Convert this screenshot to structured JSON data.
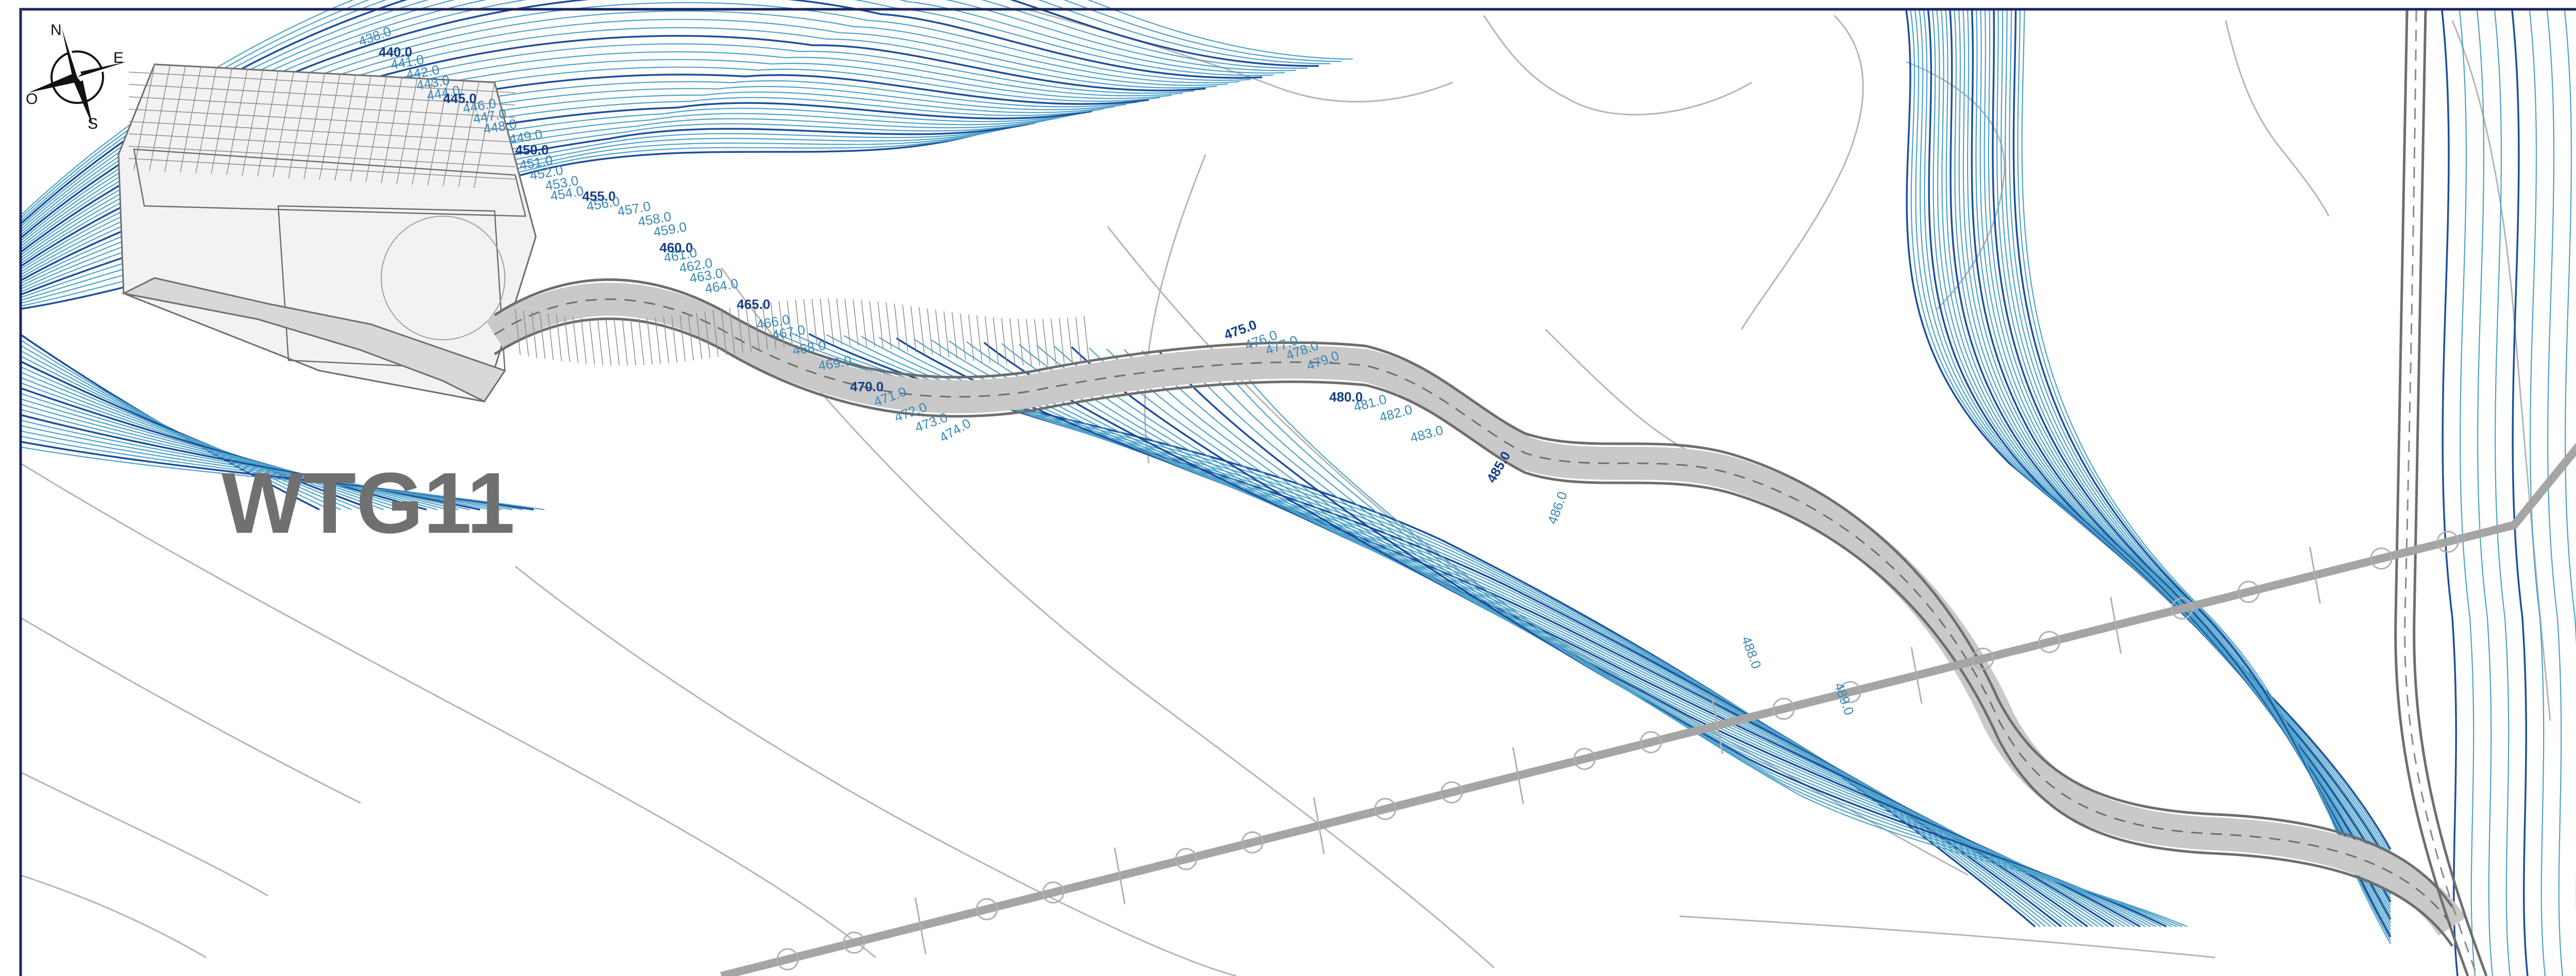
{
  "map": {
    "site_label": "WTG11",
    "compass": {
      "north": "N",
      "east": "E",
      "south": "S",
      "west": "O"
    },
    "colors": {
      "background": "#ffffff",
      "frame": "#1a2660",
      "contour_minor": "#4fa3c9",
      "contour_major": "#1d4f9e",
      "label_minor": "#3a88b5",
      "label_major": "#163f88",
      "road": "#6e6e6e",
      "road_hatch": "#8a8a8a",
      "platform_fill": "#d8d8d8",
      "power_line": "#a5a5a5",
      "terrain_lines": "#b5b5b5",
      "site_label": "#707070"
    },
    "contour_labels": [
      {
        "text": "438.0",
        "major": false
      },
      {
        "text": "440.0",
        "major": true
      },
      {
        "text": "441.0",
        "major": false
      },
      {
        "text": "442.0",
        "major": false
      },
      {
        "text": "443.0",
        "major": false
      },
      {
        "text": "444.0",
        "major": false
      },
      {
        "text": "445.0",
        "major": true
      },
      {
        "text": "446.0",
        "major": false
      },
      {
        "text": "447.0",
        "major": false
      },
      {
        "text": "448.0",
        "major": false
      },
      {
        "text": "449.0",
        "major": false
      },
      {
        "text": "450.0",
        "major": true
      },
      {
        "text": "451.0",
        "major": false
      },
      {
        "text": "452.0",
        "major": false
      },
      {
        "text": "453.0",
        "major": false
      },
      {
        "text": "454.0",
        "major": false
      },
      {
        "text": "455.0",
        "major": true
      },
      {
        "text": "456.0",
        "major": false
      },
      {
        "text": "457.0",
        "major": false
      },
      {
        "text": "458.0",
        "major": false
      },
      {
        "text": "459.0",
        "major": false
      },
      {
        "text": "460.0",
        "major": true
      },
      {
        "text": "461.0",
        "major": false
      },
      {
        "text": "462.0",
        "major": false
      },
      {
        "text": "463.0",
        "major": false
      },
      {
        "text": "464.0",
        "major": false
      },
      {
        "text": "465.0",
        "major": true
      },
      {
        "text": "466.0",
        "major": false
      },
      {
        "text": "467.0",
        "major": false
      },
      {
        "text": "468.0",
        "major": false
      },
      {
        "text": "469.0",
        "major": false
      },
      {
        "text": "470.0",
        "major": true
      },
      {
        "text": "471.0",
        "major": false
      },
      {
        "text": "472.0",
        "major": false
      },
      {
        "text": "473.0",
        "major": false
      },
      {
        "text": "474.0",
        "major": false
      },
      {
        "text": "475.0",
        "major": true
      },
      {
        "text": "476.0",
        "major": false
      },
      {
        "text": "477.0",
        "major": false
      },
      {
        "text": "478.0",
        "major": false
      },
      {
        "text": "479.0",
        "major": false
      },
      {
        "text": "480.0",
        "major": true
      },
      {
        "text": "481.0",
        "major": false
      },
      {
        "text": "482.0",
        "major": false
      },
      {
        "text": "483.0",
        "major": false
      },
      {
        "text": "485.0",
        "major": true
      },
      {
        "text": "486.0",
        "major": false
      },
      {
        "text": "488.0",
        "major": false
      },
      {
        "text": "489.0",
        "major": false
      }
    ]
  }
}
